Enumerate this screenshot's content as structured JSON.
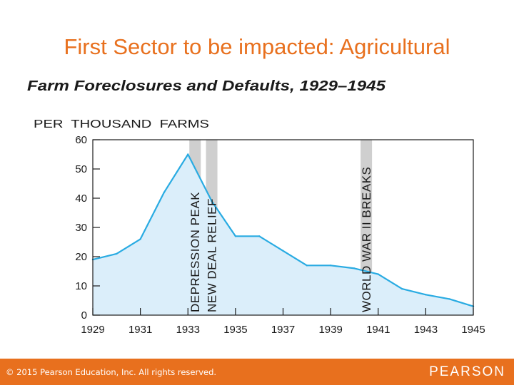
{
  "slide": {
    "title": "First Sector to be impacted: Agricultural",
    "copyright": "© 2015  Pearson Education, Inc. All rights reserved.",
    "logo_text": "PEARSON",
    "accent_color": "#e8701e"
  },
  "chart_data": {
    "type": "area",
    "title": "Farm Foreclosures and Defaults, 1929–1945",
    "ylabel": "PER  THOUSAND  FARMS",
    "xlabel": "",
    "xlim": [
      1929,
      1945
    ],
    "ylim": [
      0,
      60
    ],
    "x_ticks": [
      1929,
      1931,
      1933,
      1935,
      1937,
      1939,
      1941,
      1943,
      1945
    ],
    "x_tick_labels": [
      "1929",
      "1931",
      "1933",
      "1935",
      "1937",
      "1939",
      "1941",
      "1943",
      "1945"
    ],
    "y_ticks": [
      0,
      10,
      20,
      30,
      40,
      50,
      60
    ],
    "y_tick_labels": [
      "0",
      "10",
      "20",
      "30",
      "40",
      "50",
      "60"
    ],
    "series": [
      {
        "x": [
          1929,
          1930,
          1931,
          1932,
          1933,
          1934,
          1935,
          1936,
          1937,
          1938,
          1939,
          1940,
          1941,
          1942,
          1943,
          1944,
          1945
        ],
        "values": [
          19,
          21,
          26,
          42,
          55,
          39,
          27,
          27,
          22,
          17,
          17,
          16,
          14,
          9,
          7,
          5.5,
          3
        ],
        "color": "#29abe2",
        "fill": "#dbeefa"
      }
    ],
    "annotations": [
      {
        "text": "DEPRESSION PEAK",
        "x": 1933.3
      },
      {
        "text": "NEW DEAL RELIEF",
        "x": 1934.0
      },
      {
        "text": "WORLD WAR II BREAKS",
        "x": 1940.5
      }
    ],
    "grid": false,
    "band_color": "#cfcfcf"
  }
}
